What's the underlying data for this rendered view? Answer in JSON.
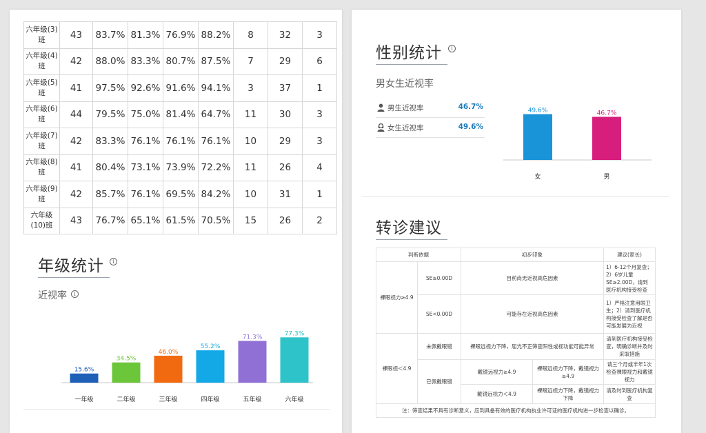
{
  "class_table": [
    {
      "name": "六年级(3)班",
      "n": "43",
      "p1": "83.7%",
      "p2": "81.3%",
      "p3": "76.9%",
      "p4": "88.2%",
      "a": "8",
      "b": "32",
      "c": "3"
    },
    {
      "name": "六年级(4)班",
      "n": "42",
      "p1": "88.0%",
      "p2": "83.3%",
      "p3": "80.7%",
      "p4": "87.5%",
      "a": "7",
      "b": "29",
      "c": "6"
    },
    {
      "name": "六年级(5)班",
      "n": "41",
      "p1": "97.5%",
      "p2": "92.6%",
      "p3": "91.6%",
      "p4": "94.1%",
      "a": "3",
      "b": "37",
      "c": "1"
    },
    {
      "name": "六年级(6)班",
      "n": "44",
      "p1": "79.5%",
      "p2": "75.0%",
      "p3": "81.4%",
      "p4": "64.7%",
      "a": "11",
      "b": "30",
      "c": "3"
    },
    {
      "name": "六年级(7)班",
      "n": "42",
      "p1": "83.3%",
      "p2": "76.1%",
      "p3": "76.1%",
      "p4": "76.1%",
      "a": "10",
      "b": "29",
      "c": "3"
    },
    {
      "name": "六年级(8)班",
      "n": "41",
      "p1": "80.4%",
      "p2": "73.1%",
      "p3": "73.9%",
      "p4": "72.2%",
      "a": "11",
      "b": "26",
      "c": "4"
    },
    {
      "name": "六年级(9)班",
      "n": "42",
      "p1": "85.7%",
      "p2": "76.1%",
      "p3": "69.5%",
      "p4": "84.2%",
      "a": "10",
      "b": "31",
      "c": "1"
    },
    {
      "name": "六年级(10)班",
      "n": "43",
      "p1": "76.7%",
      "p2": "65.1%",
      "p3": "61.5%",
      "p4": "70.5%",
      "a": "15",
      "b": "26",
      "c": "2"
    }
  ],
  "grade_section": {
    "title": "年级统计",
    "subtitle": "近视率"
  },
  "gender_section": {
    "title": "性别统计",
    "subtitle": "男女生近视率",
    "rows": [
      {
        "label": "男生近视率",
        "value": "46.7%",
        "icon": "male-user-icon"
      },
      {
        "label": "女生近视率",
        "value": "49.6%",
        "icon": "female-user-icon"
      }
    ]
  },
  "referral_section": {
    "title": "转诊建议",
    "headers": [
      "判断依据",
      "初步印象",
      "建议(家长)"
    ],
    "r1_basis": "裸眼视力≥4.9",
    "r1a_cond": "SE≥0.00D",
    "r1a_impression": "目前尚无近视高危因素",
    "r1a_advice": "1）6-12个月复查；2）6岁儿童SE≥2.00D，请到医疗机构接受检查",
    "r1b_cond": "SE<0.00D",
    "r1b_impression": "可能存在近视高危因素",
    "r1b_advice": "1）严格注意用眼卫生；2）请到医疗机构接受检查了解是否可能发展为近视",
    "r2_basis": "裸眼视＜4.9",
    "r2a_cond": "未佩戴眼镜",
    "r2a_impression": "裸眼远视力下降，屈光不正筛查阳性或视功能可能异常",
    "r2a_advice": "请到医疗机构接受检查，明确诊断并及时采取措施",
    "r2b_cond": "已佩戴眼镜",
    "r2b1_sub": "戴镜远视力≥4.9",
    "r2b1_impression": "裸眼远视力下降，戴镜视力≥4.9",
    "r2b1_advice": "请三个月或半年1次检查裸眼视力和戴镜视力",
    "r2b2_sub": "戴镜远视力＜4.9",
    "r2b2_impression": "裸眼远视力下降，戴镜视力下降",
    "r2b2_advice": "请及时到医疗机构复查",
    "note": "注：筛查结果不具有诊断意义，应到具备有效的医疗机构执业许可证的医疗机构进一步检查以确诊。"
  },
  "chart_data": [
    {
      "type": "bar",
      "categories": [
        "一年级",
        "二年级",
        "三年级",
        "四年级",
        "五年级",
        "六年级"
      ],
      "values": [
        15.6,
        34.5,
        46.0,
        55.2,
        71.3,
        77.3
      ],
      "labels": [
        "15.6%",
        "34.5%",
        "46.0%",
        "55.2%",
        "71.3%",
        "77.3%"
      ],
      "colors": [
        "#1e5fb8",
        "#6cc63a",
        "#f26a10",
        "#12a9e6",
        "#9170d6",
        "#2ec3c8"
      ],
      "ylim": [
        0,
        100
      ],
      "grid": false
    },
    {
      "type": "bar",
      "categories": [
        "女",
        "男"
      ],
      "values": [
        49.6,
        46.7
      ],
      "labels": [
        "49.6%",
        "46.7%"
      ],
      "colors": [
        "#1a94d9",
        "#d81e7c"
      ],
      "ylim": [
        0,
        100
      ],
      "grid": false
    }
  ]
}
